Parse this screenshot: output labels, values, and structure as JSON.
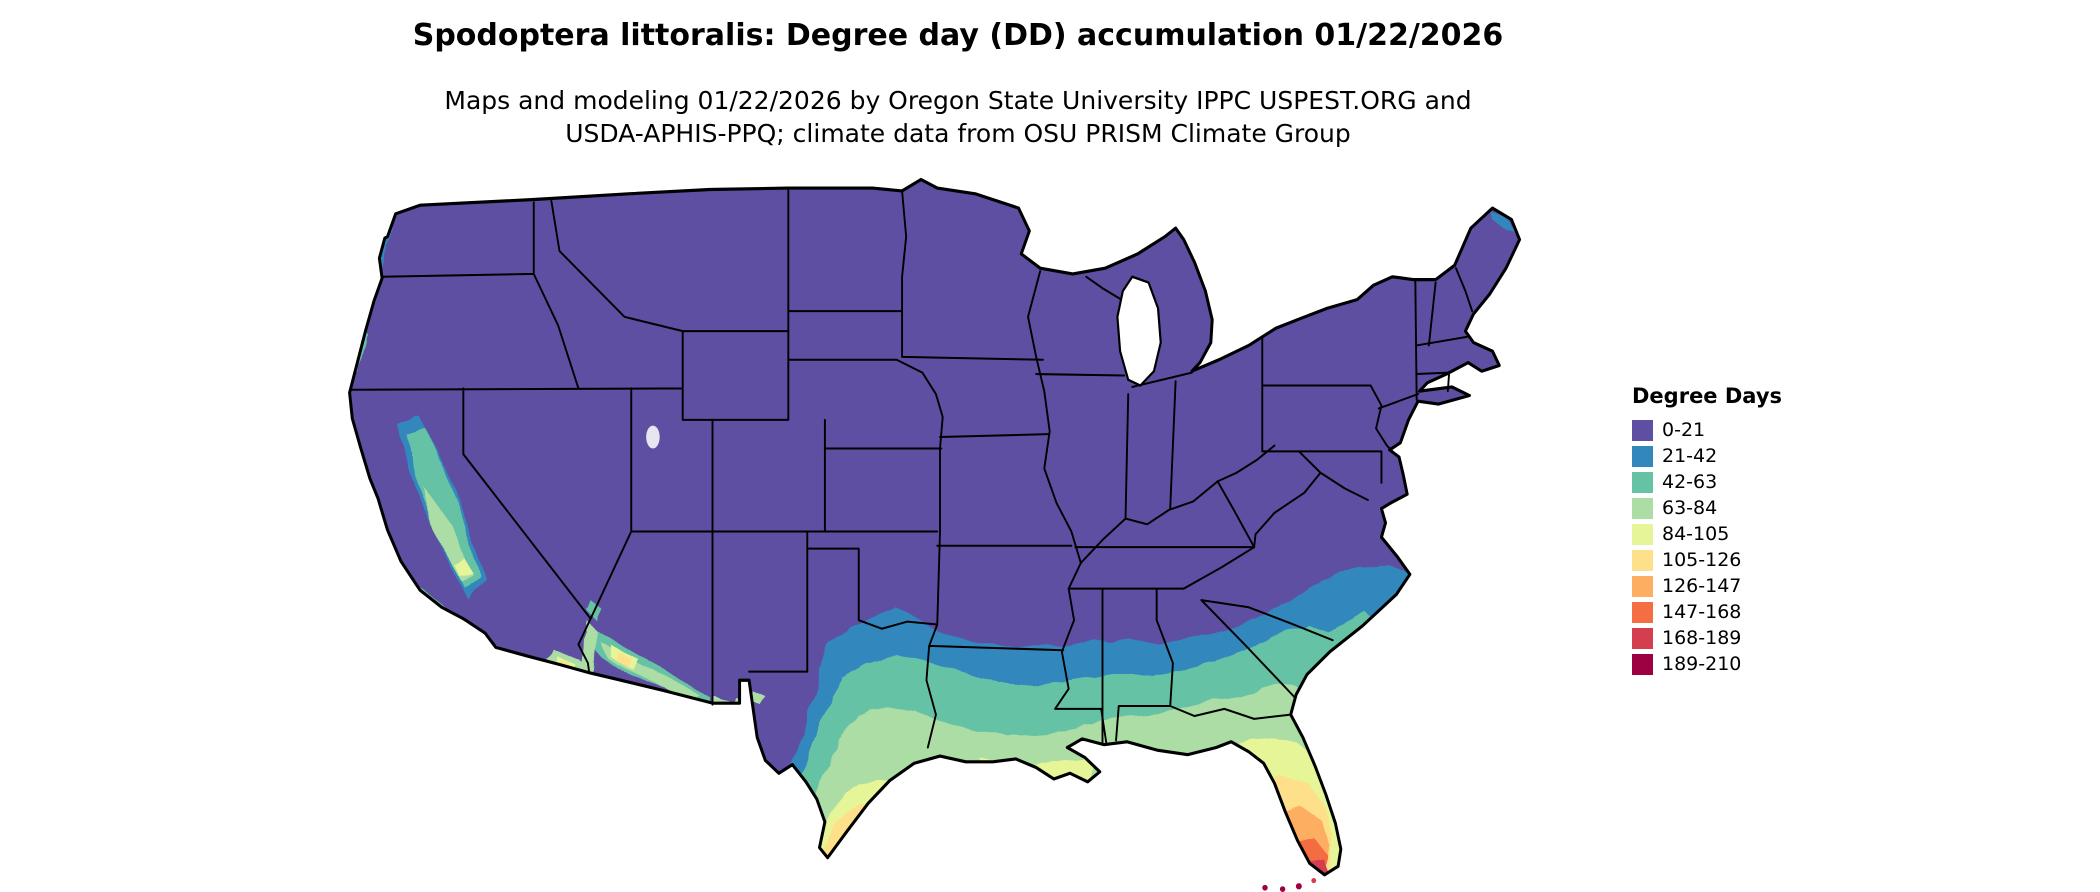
{
  "header": {
    "title": "Spodoptera littoralis: Degree day (DD) accumulation 01/22/2026",
    "subtitle_line1": "Maps and modeling 01/22/2026 by Oregon State University IPPC USPEST.ORG and",
    "subtitle_line2": "USDA-APHIS-PPQ; climate data from OSU PRISM Climate Group"
  },
  "legend": {
    "title": "Degree Days",
    "entries": [
      {
        "label": "0-21",
        "color": "#5e4fa2"
      },
      {
        "label": "21-42",
        "color": "#3288bd"
      },
      {
        "label": "42-63",
        "color": "#66c2a5"
      },
      {
        "label": "63-84",
        "color": "#abdda4"
      },
      {
        "label": "84-105",
        "color": "#e6f598"
      },
      {
        "label": "105-126",
        "color": "#fee08b"
      },
      {
        "label": "126-147",
        "color": "#fdae61"
      },
      {
        "label": "147-168",
        "color": "#f46d43"
      },
      {
        "label": "168-189",
        "color": "#d53e4f"
      },
      {
        "label": "189-210",
        "color": "#9e0142"
      }
    ]
  },
  "map": {
    "region": "Contiguous United States",
    "border_color": "#000000",
    "water_color": "#ffffff"
  }
}
